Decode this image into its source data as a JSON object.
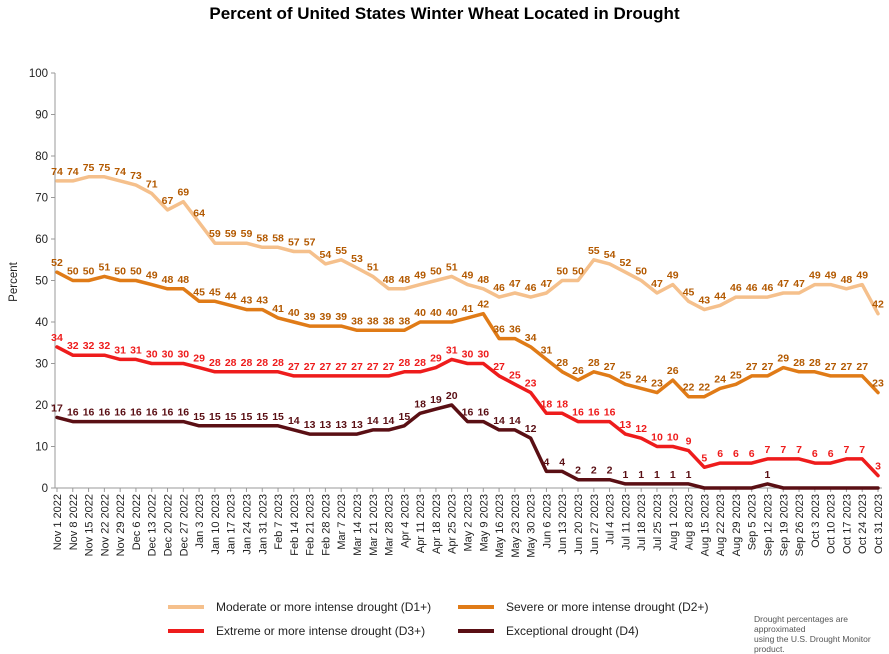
{
  "chart_data": {
    "type": "line",
    "title": "Percent of United States Winter Wheat Located in Drought",
    "ylabel": "Percent",
    "xlabel": "",
    "ylim": [
      0,
      100
    ],
    "yticks": [
      "0",
      "10",
      "20",
      "30",
      "40",
      "50",
      "60",
      "70",
      "80",
      "90",
      "100"
    ],
    "grid": false,
    "legend_position": "bottom",
    "categories": [
      "Nov 1 2022",
      "Nov 8 2022",
      "Nov 15 2022",
      "Nov 22 2022",
      "Nov 29 2022",
      "Dec 6 2022",
      "Dec 13 2022",
      "Dec 20 2022",
      "Dec 27 2022",
      "Jan 3 2023",
      "Jan 10 2023",
      "Jan 17 2023",
      "Jan 24 2023",
      "Jan 31 2023",
      "Feb 7 2023",
      "Feb 14 2023",
      "Feb 21 2023",
      "Feb 28 2023",
      "Mar 7 2023",
      "Mar 14 2023",
      "Mar 21 2023",
      "Mar 28 2023",
      "Apr 4 2023",
      "Apr 11 2023",
      "Apr 18 2023",
      "Apr 25 2023",
      "May 2 2023",
      "May 9 2023",
      "May 16 2023",
      "May 23 2023",
      "May 30 2023",
      "Jun 6 2023",
      "Jun 13 2023",
      "Jun 20 2023",
      "Jun 27 2023",
      "Jul 4 2023",
      "Jul 11 2023",
      "Jul 18 2023",
      "Jul 25 2023",
      "Aug 1 2023",
      "Aug 8 2023",
      "Aug 15 2023",
      "Aug 22 2023",
      "Aug 29 2023",
      "Sep 5 2023",
      "Sep 12 2023",
      "Sep 19 2023",
      "Sep 26 2023",
      "Oct 3 2023",
      "Oct 10 2023",
      "Oct 17 2023",
      "Oct 24 2023",
      "Oct 31 2023"
    ],
    "xtick_labels": [
      "Nov 1 2022",
      "Nov 8 2022",
      "Nov 15 2022",
      "Nov 22 2022",
      "Nov 29 2022",
      "Dec 6 2022",
      "Dec 13 2022",
      "Dec 20 2022",
      "Dec 27 2022",
      "Jan 3 2023",
      "Jan 10 2023",
      "Jan 17 2023",
      "Jan 24 2023",
      "Jan 31 2023",
      "Feb 7 2023",
      "Feb 14 2023",
      "Feb 21 2023",
      "Feb 28 2023",
      "Mar 7 2023",
      "Mar 14 2023",
      "Mar 21 2023",
      "Mar 28 2023",
      "Apr 4 2023",
      "Apr 11 2023",
      "Apr 18 2023",
      "Apr 25 2023",
      "May 2 2023",
      "May 9 2023",
      "May 16 2023",
      "May 23 2023",
      "May 30 2023",
      "Jun 6 2023",
      "Jun 13 2023",
      "Jun 20 2023",
      "Jun 27 2023",
      "Jul 4 2023",
      "Jul 11 2023",
      "Jul 18 2023",
      "Jul 25 2023",
      "Aug 1 2023",
      "Aug 8 2023",
      "Aug 15 2023",
      "Aug 22 2023",
      "Aug 29 2023",
      "Sep 5 2023",
      "Sep 12 2023",
      "Sep 19 2023",
      "Sep 26 2023",
      "Oct 3 2023",
      "Oct 10 2023",
      "Oct 17 2023",
      "Oct 24 2023",
      "Oct 31 2023"
    ],
    "series": [
      {
        "name": "Moderate or more intense drought (D1+)",
        "color": "#f5c08c",
        "label_color": "#b35900",
        "values": [
          74,
          74,
          75,
          75,
          74,
          73,
          71,
          67,
          69,
          64,
          59,
          59,
          59,
          58,
          58,
          57,
          57,
          54,
          55,
          53,
          51,
          48,
          48,
          49,
          50,
          51,
          49,
          48,
          46,
          47,
          46,
          47,
          50,
          50,
          55,
          54,
          52,
          50,
          47,
          49,
          45,
          43,
          44,
          46,
          46,
          46,
          47,
          47,
          49,
          49,
          48,
          49,
          42
        ],
        "labels": [
          "74",
          "74",
          "75",
          "75",
          "74",
          "73",
          "71",
          "67",
          "69",
          "64",
          "59",
          "59",
          "59",
          "58",
          "58",
          "57",
          "57",
          "54",
          "55",
          "53",
          "51",
          "48",
          "48",
          "49",
          "50",
          "51",
          "49",
          "48",
          "46",
          "47",
          "46",
          "47",
          "50",
          "50",
          "55",
          "54",
          "52",
          "50",
          "47",
          "49",
          "45",
          "43",
          "44",
          "46",
          "46",
          "46",
          "47",
          "47",
          "49",
          "49",
          "48",
          "49",
          "42"
        ]
      },
      {
        "name": "Severe or more intense drought (D2+)",
        "color": "#e07b17",
        "label_color": "#b35900",
        "values": [
          52,
          50,
          50,
          51,
          50,
          50,
          49,
          48,
          48,
          45,
          45,
          44,
          43,
          43,
          41,
          40,
          39,
          39,
          39,
          38,
          38,
          38,
          38,
          40,
          40,
          40,
          41,
          42,
          36,
          36,
          34,
          31,
          28,
          26,
          28,
          27,
          25,
          24,
          23,
          26,
          22,
          22,
          24,
          25,
          27,
          27,
          29,
          28,
          28,
          27,
          27,
          27,
          23
        ],
        "labels": [
          "52",
          "50",
          "50",
          "51",
          "50",
          "50",
          "49",
          "48",
          "48",
          "45",
          "45",
          "44",
          "43",
          "43",
          "41",
          "40",
          "39",
          "39",
          "39",
          "38",
          "38",
          "38",
          "38",
          "40",
          "40",
          "40",
          "41",
          "42",
          "36",
          "36",
          "34",
          "31",
          "28",
          "26",
          "28",
          "27",
          "25",
          "24",
          "23",
          "26",
          "22",
          "22",
          "24",
          "25",
          "27",
          "27",
          "29",
          "28",
          "28",
          "27",
          "27",
          "27",
          "23"
        ]
      },
      {
        "name": "Extreme or more intense drought (D3+)",
        "color": "#ee1c1c",
        "label_color": "#ee1c1c",
        "values": [
          34,
          32,
          32,
          32,
          31,
          31,
          30,
          30,
          30,
          29,
          28,
          28,
          28,
          28,
          28,
          27,
          27,
          27,
          27,
          27,
          27,
          27,
          28,
          28,
          29,
          31,
          30,
          30,
          27,
          25,
          23,
          18,
          18,
          16,
          16,
          16,
          13,
          12,
          10,
          10,
          9,
          5,
          6,
          6,
          6,
          7,
          7,
          7,
          6,
          6,
          7,
          7,
          3
        ],
        "labels": [
          "34",
          "32",
          "32",
          "32",
          "31",
          "31",
          "30",
          "30",
          "30",
          "29",
          "28",
          "28",
          "28",
          "28",
          "28",
          "27",
          "27",
          "27",
          "27",
          "27",
          "27",
          "27",
          "28",
          "28",
          "29",
          "31",
          "30",
          "30",
          "27",
          "25",
          "23",
          "18",
          "18",
          "16",
          "16",
          "16",
          "13",
          "12",
          "10",
          "10",
          "9",
          "5",
          "6",
          "6",
          "6",
          "7",
          "7",
          "7",
          "6",
          "6",
          "7",
          "7",
          "3"
        ]
      },
      {
        "name": "Exceptional drought (D4)",
        "color": "#5a0f14",
        "label_color": "#5a0f14",
        "values": [
          17,
          16,
          16,
          16,
          16,
          16,
          16,
          16,
          16,
          15,
          15,
          15,
          15,
          15,
          15,
          14,
          13,
          13,
          13,
          13,
          14,
          14,
          15,
          18,
          19,
          20,
          16,
          16,
          14,
          14,
          12,
          4,
          4,
          2,
          2,
          2,
          1,
          1,
          1,
          1,
          1,
          0,
          0,
          0,
          0,
          1,
          0,
          0,
          0,
          0,
          0,
          0,
          0
        ],
        "labels": [
          "17",
          "16",
          "16",
          "16",
          "16",
          "16",
          "16",
          "16",
          "16",
          "15",
          "15",
          "15",
          "15",
          "15",
          "15",
          "14",
          "13",
          "13",
          "13",
          "13",
          "14",
          "14",
          "15",
          "18",
          "19",
          "20",
          "16",
          "16",
          "14",
          "14",
          "12",
          "4",
          "4",
          "2",
          "2",
          "2",
          "1",
          "1",
          "1",
          "1",
          "1",
          "",
          "",
          "",
          "",
          "1",
          "",
          "",
          "",
          "",
          "",
          "",
          ""
        ]
      }
    ]
  },
  "legend": [
    {
      "label": "Moderate or more intense drought (D1+)",
      "color": "#f5c08c"
    },
    {
      "label": "Severe or more intense drought (D2+)",
      "color": "#e07b17"
    },
    {
      "label": "Extreme or more intense drought (D3+)",
      "color": "#ee1c1c"
    },
    {
      "label": "Exceptional drought (D4)",
      "color": "#5a0f14"
    }
  ],
  "note": {
    "line1": "Drought percentages are approximated",
    "line2": "using the U.S. Drought Monitor product."
  }
}
